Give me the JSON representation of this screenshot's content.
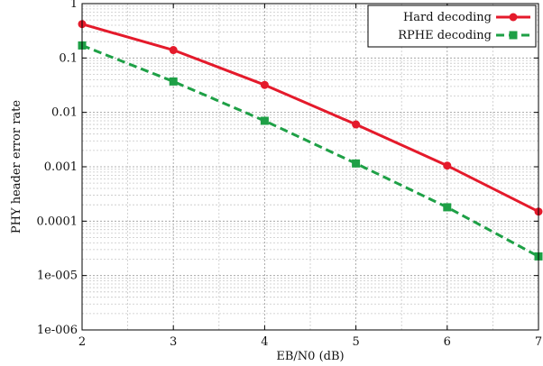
{
  "chart_data": {
    "type": "line",
    "xlabel": "EB/N0 (dB)",
    "ylabel": "PHY header error rate",
    "xlim": [
      2,
      7
    ],
    "ylim": [
      1e-06,
      1
    ],
    "yscale": "log",
    "xticks": [
      "2",
      "3",
      "4",
      "5",
      "6",
      "7"
    ],
    "yticks": [
      "1e-006",
      "1e-005",
      "0.0001",
      "0.001",
      "0.01",
      "0.1",
      "1"
    ],
    "grid": true,
    "legend_position": "top-right",
    "x": [
      2,
      3,
      4,
      5,
      6,
      7
    ],
    "series": [
      {
        "name": "Hard decoding",
        "color": "#e41a2b",
        "line_style": "solid",
        "marker": "circle",
        "values": [
          0.42,
          0.14,
          0.032,
          0.006,
          0.00105,
          0.00015
        ]
      },
      {
        "name": "RPHE decoding",
        "color": "#1ea046",
        "line_style": "dashed",
        "marker": "square",
        "values": [
          0.17,
          0.037,
          0.007,
          0.00115,
          0.00018,
          2.25e-05
        ]
      }
    ]
  }
}
